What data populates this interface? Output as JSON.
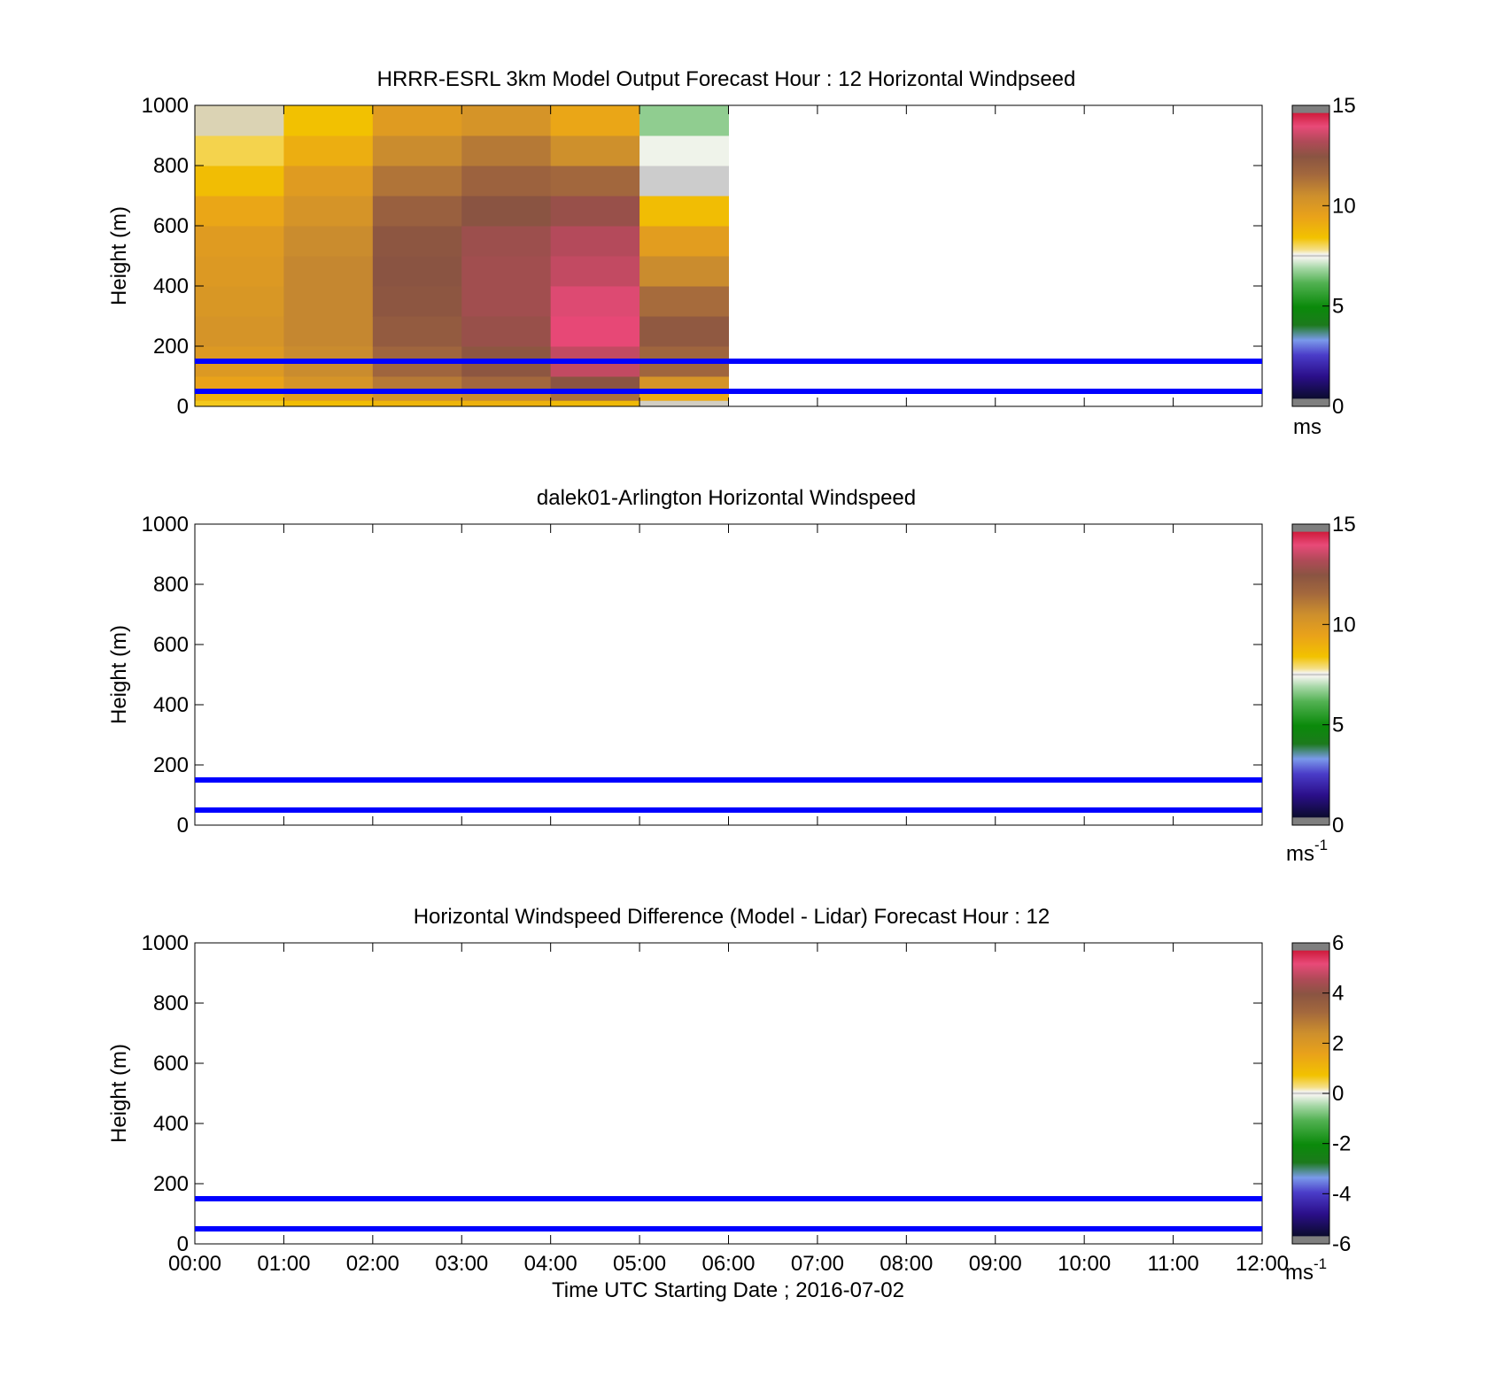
{
  "figure": {
    "xlabel": "Time UTC  Starting Date ; 2016-07-02",
    "x_ticks": [
      "00:00",
      "01:00",
      "02:00",
      "03:00",
      "04:00",
      "05:00",
      "06:00",
      "07:00",
      "08:00",
      "09:00",
      "10:00",
      "11:00",
      "12:00"
    ]
  },
  "chart_data": [
    {
      "type": "heatmap",
      "title": "HRRR-ESRL 3km Model Output   Forecast Hour : 12 Horizontal Windpseed",
      "ylabel": "Height (m)",
      "xlim_hours": [
        0,
        12
      ],
      "ylim": [
        0,
        1000
      ],
      "y_ticks": [
        "0",
        "200",
        "400",
        "600",
        "800",
        "1000"
      ],
      "reference_lines_m": [
        50,
        150
      ],
      "colorbar": {
        "ticks": [
          "0",
          "5",
          "10",
          "15"
        ],
        "range": [
          0,
          15
        ],
        "unit": "ms",
        "unit_sup": ""
      },
      "columns": [
        {
          "t0": 0,
          "t1": 1,
          "cells": [
            {
              "y0": 0,
              "y1": 20,
              "v": 9.0
            },
            {
              "y0": 20,
              "y1": 60,
              "v": 9.6
            },
            {
              "y0": 60,
              "y1": 100,
              "v": 10.0
            },
            {
              "y0": 100,
              "y1": 200,
              "v": 10.4
            },
            {
              "y0": 200,
              "y1": 300,
              "v": 10.6
            },
            {
              "y0": 300,
              "y1": 400,
              "v": 10.5
            },
            {
              "y0": 400,
              "y1": 500,
              "v": 10.4
            },
            {
              "y0": 500,
              "y1": 600,
              "v": 10.3
            },
            {
              "y0": 600,
              "y1": 700,
              "v": 9.9
            },
            {
              "y0": 700,
              "y1": 800,
              "v": 9.3
            },
            {
              "y0": 800,
              "y1": 900,
              "v": 8.7
            },
            {
              "y0": 900,
              "y1": 1000,
              "v": 7.8
            }
          ]
        },
        {
          "t0": 1,
          "t1": 2,
          "cells": [
            {
              "y0": 0,
              "y1": 20,
              "v": 9.3
            },
            {
              "y0": 20,
              "y1": 60,
              "v": 10.2
            },
            {
              "y0": 60,
              "y1": 100,
              "v": 10.6
            },
            {
              "y0": 100,
              "y1": 200,
              "v": 10.9
            },
            {
              "y0": 200,
              "y1": 300,
              "v": 11.0
            },
            {
              "y0": 300,
              "y1": 400,
              "v": 11.0
            },
            {
              "y0": 400,
              "y1": 500,
              "v": 11.0
            },
            {
              "y0": 500,
              "y1": 600,
              "v": 10.9
            },
            {
              "y0": 600,
              "y1": 700,
              "v": 10.6
            },
            {
              "y0": 700,
              "y1": 800,
              "v": 10.3
            },
            {
              "y0": 800,
              "y1": 900,
              "v": 9.7
            },
            {
              "y0": 900,
              "y1": 1000,
              "v": 9.2
            }
          ]
        },
        {
          "t0": 2,
          "t1": 3,
          "cells": [
            {
              "y0": 0,
              "y1": 20,
              "v": 9.5
            },
            {
              "y0": 20,
              "y1": 60,
              "v": 10.7
            },
            {
              "y0": 60,
              "y1": 100,
              "v": 11.3
            },
            {
              "y0": 100,
              "y1": 200,
              "v": 11.8
            },
            {
              "y0": 200,
              "y1": 300,
              "v": 12.2
            },
            {
              "y0": 300,
              "y1": 400,
              "v": 12.4
            },
            {
              "y0": 400,
              "y1": 500,
              "v": 12.5
            },
            {
              "y0": 500,
              "y1": 600,
              "v": 12.4
            },
            {
              "y0": 600,
              "y1": 700,
              "v": 12.0
            },
            {
              "y0": 700,
              "y1": 800,
              "v": 11.4
            },
            {
              "y0": 800,
              "y1": 900,
              "v": 10.9
            },
            {
              "y0": 900,
              "y1": 1000,
              "v": 10.3
            }
          ]
        },
        {
          "t0": 3,
          "t1": 4,
          "cells": [
            {
              "y0": 0,
              "y1": 20,
              "v": 9.6
            },
            {
              "y0": 20,
              "y1": 60,
              "v": 10.9
            },
            {
              "y0": 60,
              "y1": 100,
              "v": 11.7
            },
            {
              "y0": 100,
              "y1": 200,
              "v": 12.4
            },
            {
              "y0": 200,
              "y1": 300,
              "v": 12.8
            },
            {
              "y0": 300,
              "y1": 400,
              "v": 13.0
            },
            {
              "y0": 400,
              "y1": 500,
              "v": 13.0
            },
            {
              "y0": 500,
              "y1": 600,
              "v": 12.9
            },
            {
              "y0": 600,
              "y1": 700,
              "v": 12.5
            },
            {
              "y0": 700,
              "y1": 800,
              "v": 11.9
            },
            {
              "y0": 800,
              "y1": 900,
              "v": 11.3
            },
            {
              "y0": 900,
              "y1": 1000,
              "v": 10.6
            }
          ]
        },
        {
          "t0": 4,
          "t1": 5,
          "cells": [
            {
              "y0": 0,
              "y1": 20,
              "v": 9.4
            },
            {
              "y0": 20,
              "y1": 60,
              "v": 11.5
            },
            {
              "y0": 60,
              "y1": 100,
              "v": 12.5
            },
            {
              "y0": 100,
              "y1": 200,
              "v": 13.6
            },
            {
              "y0": 200,
              "y1": 300,
              "v": 14.2
            },
            {
              "y0": 300,
              "y1": 400,
              "v": 14.0
            },
            {
              "y0": 400,
              "y1": 500,
              "v": 13.6
            },
            {
              "y0": 500,
              "y1": 600,
              "v": 13.4
            },
            {
              "y0": 600,
              "y1": 700,
              "v": 12.8
            },
            {
              "y0": 700,
              "y1": 800,
              "v": 11.7
            },
            {
              "y0": 800,
              "y1": 900,
              "v": 10.8
            },
            {
              "y0": 900,
              "y1": 1000,
              "v": 9.9
            }
          ]
        },
        {
          "t0": 5,
          "t1": 6,
          "cells": [
            {
              "y0": 0,
              "y1": 20,
              "v": 7.6
            },
            {
              "y0": 20,
              "y1": 60,
              "v": 9.8
            },
            {
              "y0": 60,
              "y1": 100,
              "v": 10.6
            },
            {
              "y0": 100,
              "y1": 200,
              "v": 11.8
            },
            {
              "y0": 200,
              "y1": 300,
              "v": 12.3
            },
            {
              "y0": 300,
              "y1": 400,
              "v": 11.6
            },
            {
              "y0": 400,
              "y1": 500,
              "v": 10.9
            },
            {
              "y0": 500,
              "y1": 600,
              "v": 10.2
            },
            {
              "y0": 600,
              "y1": 700,
              "v": 9.3
            },
            {
              "y0": 700,
              "y1": 800,
              "v": 7.5
            },
            {
              "y0": 800,
              "y1": 900,
              "v": 6.6
            },
            {
              "y0": 900,
              "y1": 1000,
              "v": 5.6
            }
          ]
        }
      ]
    },
    {
      "type": "heatmap",
      "title": "dalek01-Arlington  Horizontal Windspeed",
      "ylabel": "Height (m)",
      "xlim_hours": [
        0,
        12
      ],
      "ylim": [
        0,
        1000
      ],
      "y_ticks": [
        "0",
        "200",
        "400",
        "600",
        "800",
        "1000"
      ],
      "reference_lines_m": [
        50,
        150
      ],
      "colorbar": {
        "ticks": [
          "0",
          "5",
          "10",
          "15"
        ],
        "range": [
          0,
          15
        ],
        "unit": "ms",
        "unit_sup": "-1"
      },
      "columns": []
    },
    {
      "type": "heatmap",
      "title": "Horizontal Windspeed Difference (Model - Lidar) Forecast Hour : 12",
      "ylabel": "Height (m)",
      "xlim_hours": [
        0,
        12
      ],
      "ylim": [
        0,
        1000
      ],
      "y_ticks": [
        "0",
        "200",
        "400",
        "600",
        "800",
        "1000"
      ],
      "reference_lines_m": [
        50,
        150
      ],
      "colorbar": {
        "ticks": [
          "-6",
          "-4",
          "-2",
          "0",
          "2",
          "4",
          "6"
        ],
        "range": [
          -6,
          6
        ],
        "unit": "ms",
        "unit_sup": "-1"
      },
      "columns": []
    }
  ],
  "colors": {
    "reference_line": "#0000ff",
    "colormap": [
      "#7f7f7f",
      "#0b0b2e",
      "#2b0f8a",
      "#4a3cc8",
      "#7a9aea",
      "#1c7a1c",
      "#0a8a0a",
      "#52b152",
      "#a8d8a8",
      "#f5f5f0",
      "#cccccc",
      "#f5e08a",
      "#f2c200",
      "#e9a21a",
      "#cd8f2d",
      "#a3683d",
      "#8a5442",
      "#b04a58",
      "#e84a78",
      "#cf1c3c",
      "#7f7f7f"
    ]
  }
}
